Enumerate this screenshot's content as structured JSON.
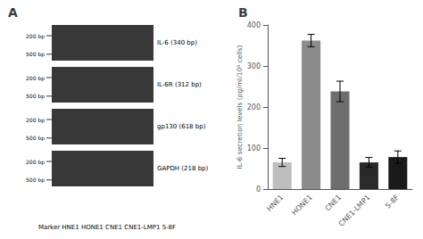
{
  "chart_data": [
    {
      "type": "gel",
      "title": "A",
      "categories": [
        "IL-6 (340 bp)",
        "IL-6R (312 bp)",
        "gp130 (618 bp)",
        "GAPDH (218 bp)"
      ],
      "annotations": [
        "500 bp",
        "200 bp"
      ],
      "xlabel": "Marker HNE1 HONE1 CNE1 CNE1-LMP1 5-8F"
    },
    {
      "type": "bar",
      "title": "B",
      "categories": [
        "HNE1",
        "HONE1",
        "CNE1",
        "CNE1-LMP1",
        "5-8F"
      ],
      "values": [
        65,
        362,
        238,
        65,
        78
      ],
      "errors": [
        10,
        15,
        25,
        12,
        15
      ],
      "colors": [
        "#bebebe",
        "#8c8c8c",
        "#6e6e6e",
        "#2a2a2a",
        "#1a1a1a"
      ],
      "ylabel": "IL-6 secretion levels (pg/ml/10⁶ cells)",
      "ylim": [
        0,
        400
      ],
      "yticks": [
        0,
        100,
        200,
        300,
        400
      ],
      "grid": false
    }
  ]
}
